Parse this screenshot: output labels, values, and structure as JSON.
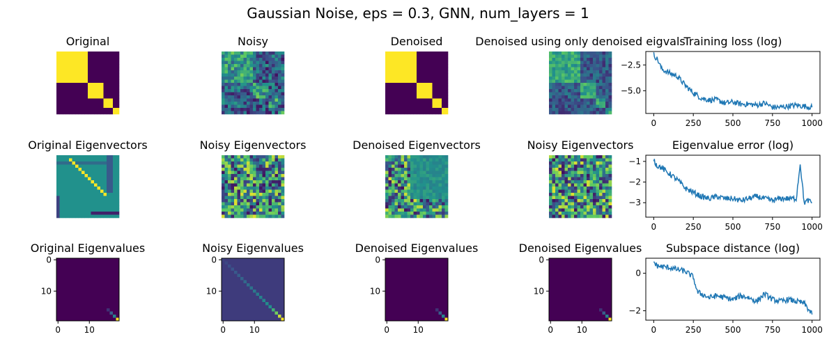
{
  "figure": {
    "suptitle": "Gaussian Noise, eps = 0.3, GNN, num_layers = 1"
  },
  "colors": {
    "viridis_low": "#440154",
    "viridis_mid": "#21918c",
    "viridis_high": "#fde725",
    "line": "#1f77b4"
  },
  "chart_data": [
    {
      "type": "heatmap",
      "title": "Original",
      "pattern": "block-diagonal",
      "block_sizes": [
        10,
        5,
        3,
        2
      ],
      "size": 20,
      "axes": "off"
    },
    {
      "type": "heatmap",
      "title": "Noisy",
      "pattern": "noisy-block-diagonal",
      "size": 20,
      "axes": "off"
    },
    {
      "type": "heatmap",
      "title": "Denoised",
      "pattern": "block-diagonal",
      "block_sizes": [
        10,
        5,
        3,
        2
      ],
      "size": 20,
      "axes": "off"
    },
    {
      "type": "heatmap",
      "title": "Denoised using only denoised eigvals",
      "pattern": "smoothed-noisy-block-diagonal",
      "size": 20,
      "axes": "off"
    },
    {
      "type": "line",
      "title": "Training loss (log)",
      "x_ticks": [
        "0",
        "250",
        "500",
        "750",
        "1000"
      ],
      "xlim": [
        -50,
        1050
      ],
      "y_ticks": [
        "−2.5",
        "−5.0"
      ],
      "y_tick_values": [
        -2.5,
        -5.0
      ],
      "ylim": [
        -7.2,
        -1.2
      ],
      "x": [
        0,
        25,
        50,
        75,
        100,
        150,
        200,
        250,
        300,
        350,
        400,
        450,
        500,
        550,
        600,
        650,
        700,
        750,
        800,
        850,
        900,
        950,
        1000
      ],
      "y": [
        -1.5,
        -2.0,
        -2.9,
        -3.1,
        -3.3,
        -3.6,
        -4.5,
        -5.2,
        -5.7,
        -5.9,
        -5.9,
        -6.2,
        -6.1,
        -6.3,
        -6.3,
        -6.4,
        -6.2,
        -6.6,
        -6.6,
        -6.5,
        -6.4,
        -6.5,
        -6.6
      ],
      "color": "#1f77b4"
    },
    {
      "type": "heatmap",
      "title": "Original Eigenvectors",
      "pattern": "eigenvectors-structured",
      "size": 20,
      "axes": "off"
    },
    {
      "type": "heatmap",
      "title": "Noisy Eigenvectors",
      "pattern": "eigenvectors-noisy",
      "size": 20,
      "axes": "off"
    },
    {
      "type": "heatmap",
      "title": "Denoised Eigenvectors",
      "pattern": "eigenvectors-denoised",
      "size": 20,
      "axes": "off"
    },
    {
      "type": "heatmap",
      "title": "Noisy Eigenvectors",
      "pattern": "eigenvectors-noisy",
      "size": 20,
      "axes": "off"
    },
    {
      "type": "line",
      "title": "Eigenvalue error (log)",
      "x_ticks": [
        "0",
        "250",
        "500",
        "750",
        "1000"
      ],
      "xlim": [
        -50,
        1050
      ],
      "y_ticks": [
        "−1",
        "−2",
        "−3"
      ],
      "y_tick_values": [
        -1,
        -2,
        -3
      ],
      "ylim": [
        -3.7,
        -0.7
      ],
      "x": [
        0,
        20,
        50,
        80,
        100,
        150,
        200,
        250,
        300,
        350,
        400,
        450,
        500,
        550,
        600,
        650,
        700,
        750,
        800,
        850,
        900,
        925,
        950,
        975,
        1000
      ],
      "y": [
        -0.9,
        -1.2,
        -1.3,
        -1.5,
        -1.6,
        -1.9,
        -2.3,
        -2.5,
        -2.7,
        -2.8,
        -2.7,
        -2.8,
        -2.8,
        -2.9,
        -2.8,
        -2.7,
        -2.8,
        -2.9,
        -2.8,
        -2.8,
        -2.8,
        -1.1,
        -3.0,
        -2.9,
        -3.0
      ],
      "color": "#1f77b4"
    },
    {
      "type": "heatmap",
      "title": "Original Eigenvalues",
      "pattern": "diagonal-eigenvalues",
      "size": 20,
      "axes": "on",
      "x_ticks": [
        "0",
        "10"
      ],
      "y_ticks": [
        "0",
        "10"
      ],
      "background": "#440154"
    },
    {
      "type": "heatmap",
      "title": "Noisy Eigenvalues",
      "pattern": "diagonal-eigenvalues-noisy",
      "size": 20,
      "axes": "on",
      "x_ticks": [
        "0",
        "10"
      ],
      "y_ticks": [
        "0",
        "10"
      ],
      "background": "#3b3f86"
    },
    {
      "type": "heatmap",
      "title": "Denoised Eigenvalues",
      "pattern": "diagonal-eigenvalues",
      "size": 20,
      "axes": "on",
      "x_ticks": [
        "0",
        "10"
      ],
      "y_ticks": [
        "0",
        "10"
      ],
      "background": "#440154"
    },
    {
      "type": "heatmap",
      "title": "Denoised Eigenvalues",
      "pattern": "diagonal-eigenvalues",
      "size": 20,
      "axes": "on",
      "x_ticks": [
        "0",
        "10"
      ],
      "y_ticks": [
        "0",
        "10"
      ],
      "background": "#440154"
    },
    {
      "type": "line",
      "title": "Subspace distance (log)",
      "x_ticks": [
        "0",
        "250",
        "500",
        "750",
        "1000"
      ],
      "xlim": [
        -50,
        1050
      ],
      "y_ticks": [
        "0",
        "−2"
      ],
      "y_tick_values": [
        0,
        -2
      ],
      "ylim": [
        -2.5,
        0.8
      ],
      "x": [
        0,
        20,
        50,
        100,
        150,
        200,
        250,
        275,
        300,
        350,
        400,
        450,
        500,
        550,
        600,
        650,
        700,
        750,
        800,
        850,
        900,
        950,
        1000
      ],
      "y": [
        0.6,
        0.4,
        0.35,
        0.3,
        0.2,
        0.1,
        -0.2,
        -1.0,
        -1.1,
        -1.3,
        -1.2,
        -1.3,
        -1.4,
        -1.2,
        -1.3,
        -1.5,
        -1.1,
        -1.4,
        -1.5,
        -1.4,
        -1.5,
        -1.6,
        -2.2
      ],
      "color": "#1f77b4"
    }
  ]
}
